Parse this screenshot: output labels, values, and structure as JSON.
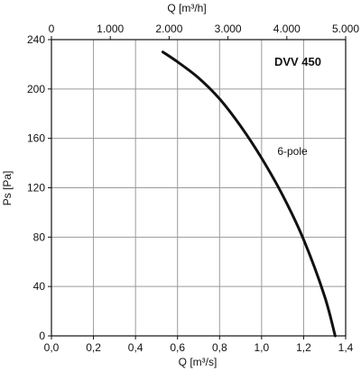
{
  "chart_data": {
    "type": "line",
    "title": "DVV 450",
    "xlabel": "Q [m³/s]",
    "x2label": "Q [m³/h]",
    "ylabel": "Ps [Pa]",
    "xlim": [
      0,
      1.4
    ],
    "ylim": [
      0,
      240
    ],
    "x2lim": [
      0,
      5000
    ],
    "x_ticks": [
      0,
      0.2,
      0.4,
      0.6,
      0.8,
      1.0,
      1.2,
      1.4
    ],
    "x_tick_labels": [
      "0,0",
      "0,2",
      "0,4",
      "0,6",
      "0,8",
      "1,0",
      "1,2",
      "1,4"
    ],
    "x2_ticks": [
      0,
      1000,
      2000,
      3000,
      4000,
      5000
    ],
    "x2_tick_labels": [
      "0",
      "1.000",
      "2.000",
      "3.000",
      "4.000",
      "5.000"
    ],
    "y_ticks": [
      0,
      40,
      80,
      120,
      160,
      200,
      240
    ],
    "y_tick_labels": [
      "0",
      "40",
      "80",
      "120",
      "160",
      "200",
      "240"
    ],
    "grid": true,
    "series": [
      {
        "name": "6-pole",
        "color": "#111111",
        "x": [
          0.53,
          0.6,
          0.7,
          0.8,
          0.9,
          1.0,
          1.1,
          1.2,
          1.3,
          1.35
        ],
        "y": [
          230,
          222,
          209,
          192,
          170,
          144,
          114,
          78,
          32,
          0
        ]
      }
    ]
  }
}
